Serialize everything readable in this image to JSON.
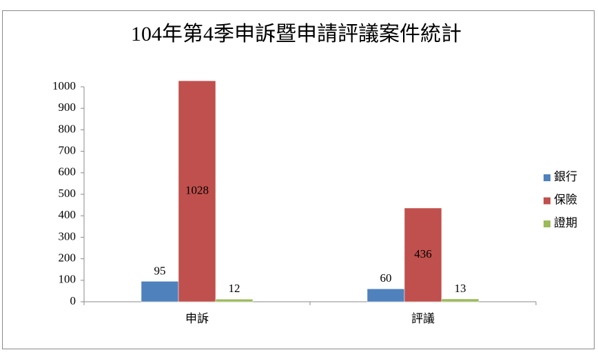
{
  "chart_data": {
    "type": "bar",
    "title": "104年第4季申訴暨申請評議案件統計",
    "categories": [
      "申訴",
      "評議"
    ],
    "series": [
      {
        "name": "銀行",
        "color": "#4f81bd",
        "values": [
          95,
          60
        ]
      },
      {
        "name": "保險",
        "color": "#c0504d",
        "values": [
          1028,
          436
        ]
      },
      {
        "name": "證期",
        "color": "#9bbb59",
        "values": [
          12,
          13
        ]
      }
    ],
    "ylim": [
      0,
      1000
    ],
    "yticks": [
      0,
      100,
      200,
      300,
      400,
      500,
      600,
      700,
      800,
      900,
      1000
    ],
    "grid": false,
    "legend": "right",
    "data_labels": true
  }
}
